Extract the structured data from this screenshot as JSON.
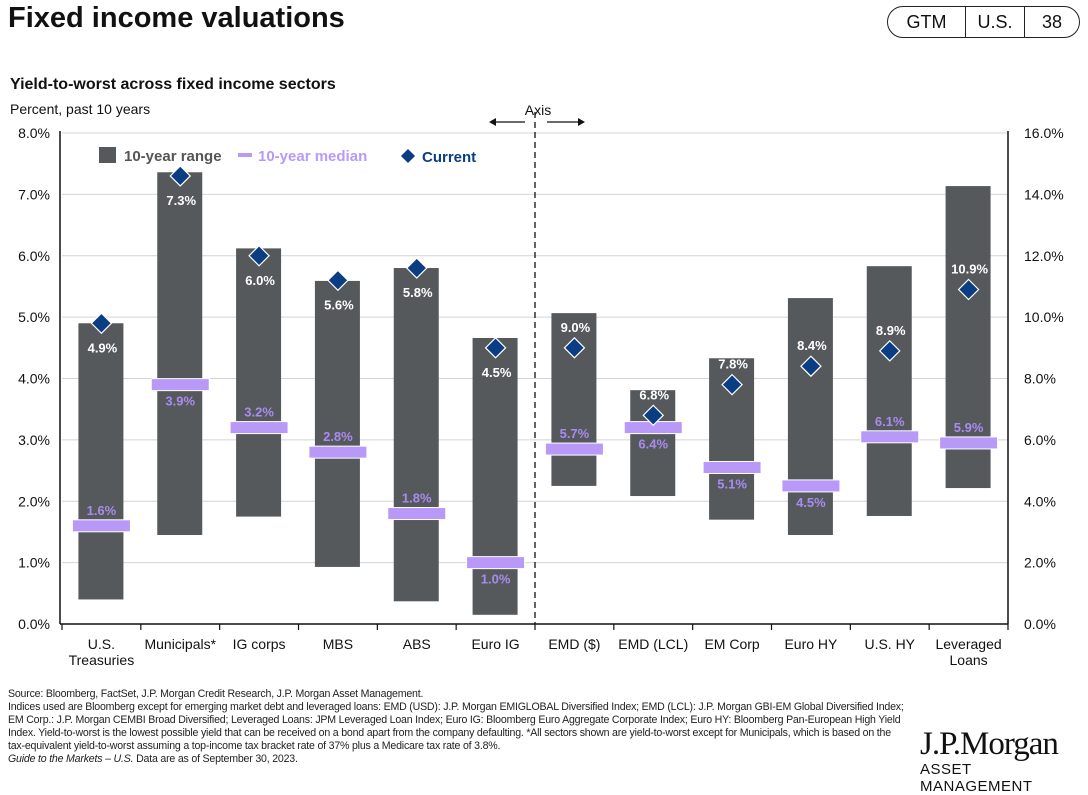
{
  "header": {
    "title": "Fixed income valuations",
    "badge": [
      "GTM",
      "U.S.",
      "38"
    ]
  },
  "chart_data": {
    "type": "range-bar",
    "title": "Yield-to-worst across fixed income sectors",
    "subtitle": "Percent, past 10 years",
    "axis_note": "Axis",
    "categories": [
      "U.S. Treasuries",
      "Municipals*",
      "IG corps",
      "MBS",
      "ABS",
      "Euro IG",
      "EMD ($)",
      "EMD (LCL)",
      "EM Corp",
      "Euro HY",
      "U.S. HY",
      "Leveraged Loans"
    ],
    "axis": [
      "left",
      "left",
      "left",
      "left",
      "left",
      "left",
      "right",
      "right",
      "right",
      "right",
      "right",
      "right"
    ],
    "legend": {
      "range": "10-year range",
      "median": "10-year median",
      "current": "Current",
      "placement": "top-left"
    },
    "range_low": [
      0.4,
      1.45,
      1.75,
      0.93,
      0.37,
      0.15,
      4.5,
      4.17,
      3.4,
      2.9,
      3.52,
      4.43
    ],
    "range_high": [
      4.9,
      7.36,
      6.12,
      5.59,
      5.8,
      4.66,
      10.13,
      7.62,
      8.66,
      10.62,
      11.66,
      14.27
    ],
    "median": [
      1.6,
      3.9,
      3.2,
      2.8,
      1.8,
      1.0,
      5.7,
      6.4,
      5.1,
      4.5,
      6.1,
      5.9
    ],
    "current": [
      4.9,
      7.3,
      6.0,
      5.6,
      5.8,
      4.5,
      9.0,
      6.8,
      7.8,
      8.4,
      8.9,
      10.9
    ],
    "median_labels": [
      "1.6%",
      "3.9%",
      "3.2%",
      "2.8%",
      "1.8%",
      "1.0%",
      "5.7%",
      "6.4%",
      "5.1%",
      "4.5%",
      "6.1%",
      "5.9%"
    ],
    "current_labels": [
      "4.9%",
      "7.3%",
      "6.0%",
      "5.6%",
      "5.8%",
      "4.5%",
      "9.0%",
      "6.8%",
      "7.8%",
      "8.4%",
      "8.9%",
      "10.9%"
    ],
    "left_ylim": [
      0,
      8
    ],
    "right_ylim": [
      0,
      16
    ],
    "left_ticks": [
      "0.0%",
      "1.0%",
      "2.0%",
      "3.0%",
      "4.0%",
      "5.0%",
      "6.0%",
      "7.0%",
      "8.0%"
    ],
    "right_ticks": [
      "0.0%",
      "2.0%",
      "4.0%",
      "6.0%",
      "8.0%",
      "10.0%",
      "12.0%",
      "14.0%",
      "16.0%"
    ],
    "grid": true,
    "colors": {
      "range": "#56595c",
      "median": "#b899f7",
      "median_text": "#a98bf0",
      "current": "#0b3d82",
      "label": "#ffffff"
    }
  },
  "footnotes": {
    "source": "Source: Bloomberg, FactSet, J.P. Morgan Credit Research, J.P. Morgan Asset Management.",
    "indices": "Indices used are Bloomberg except for emerging market debt and leveraged loans: EMD (USD): J.P. Morgan EMIGLOBAL Diversified Index; EMD (LCL): J.P. Morgan GBI-EM Global Diversified Index; EM Corp.: J.P. Morgan CEMBI Broad Diversified; Leveraged Loans: JPM Leveraged Loan Index; Euro IG: Bloomberg Euro Aggregate Corporate Index; Euro HY: Bloomberg Pan-European High Yield Index. Yield-to-worst is the lowest possible yield that can be received on a bond apart from the company defaulting. *All sectors shown are yield-to-worst except for Municipals, which is based on the tax-equivalent yield-to-worst assuming a top-income tax bracket rate of 37% plus a Medicare tax rate of 3.8%.",
    "guide": "Guide to the Markets – U.S.",
    "date": " Data are as of September 30, 2023."
  },
  "logo": {
    "name": "J.P.Morgan",
    "sub": "ASSET MANAGEMENT"
  }
}
